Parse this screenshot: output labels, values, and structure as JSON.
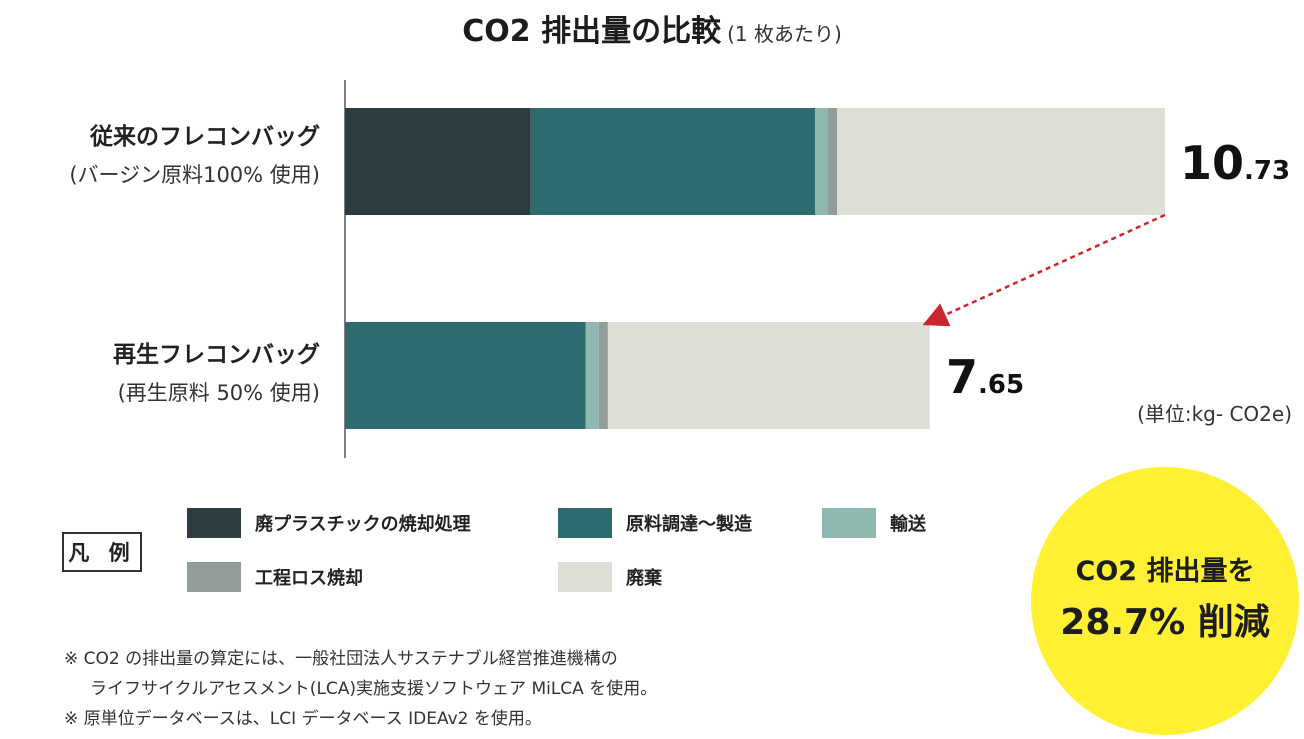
{
  "chart_data": {
    "type": "bar",
    "orientation": "horizontal",
    "stacked": true,
    "title": "CO2 排出量の比較",
    "subtitle": "(1 枚あたり)",
    "categories": [
      {
        "name": "従来のフレコンバッグ",
        "sub": "(バージン原料100% 使用)"
      },
      {
        "name": "再生フレコンバッグ",
        "sub": "(再生原料 50% 使用)"
      }
    ],
    "series": [
      {
        "name": "廃プラスチックの焼却処理",
        "color": "#2c3d42",
        "values": [
          2.43,
          0
        ]
      },
      {
        "name": "原料調達〜製造",
        "color": "#2e6b6e",
        "values": [
          3.72,
          3.15
        ]
      },
      {
        "name": "輸送",
        "color": "#8fb8b1",
        "values": [
          0.17,
          0.17
        ]
      },
      {
        "name": "工程ロス焼却",
        "color": "#929d99",
        "values": [
          0.12,
          0.12
        ]
      },
      {
        "name": "廃棄",
        "color": "#dddfd6",
        "values": [
          4.29,
          4.21
        ]
      }
    ],
    "totals": [
      {
        "int": "10",
        "dec": ".73"
      },
      {
        "int": "7",
        "dec": ".65"
      }
    ],
    "xlim": [
      0,
      10.73
    ],
    "unit_label": "(単位:kg- CO2e)",
    "arrow_color": "#c9272d",
    "legend_title": "凡 例"
  },
  "badge": {
    "line1": "CO2 排出量を",
    "line2": "28.7% 削減"
  },
  "notes": [
    "※ CO2 の排出量の算定には、一般社団法人サステナブル経営推進機構の",
    "ライフサイクルアセスメント(LCA)実施支援ソフトウェア MiLCA を使用。",
    "※ 原単位データベースは、LCI データベース IDEAv2 を使用。"
  ]
}
